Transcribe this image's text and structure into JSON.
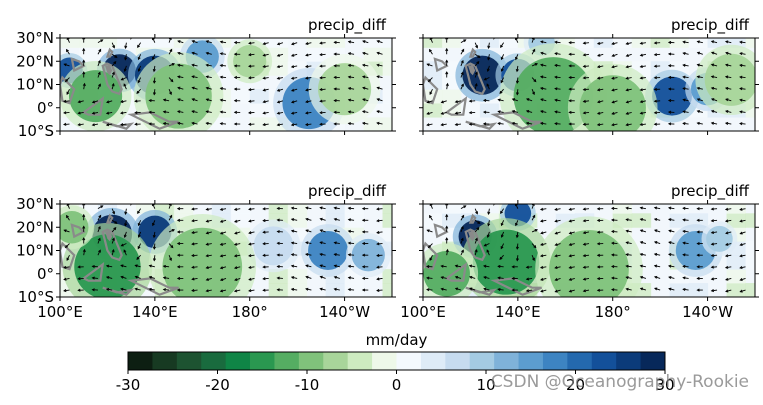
{
  "chart_data": {
    "type": "heatmap",
    "panels": [
      {
        "title": "precip_diff",
        "lat_ticks": [
          "30°N",
          "20°N",
          "10°N",
          "0°",
          "10°S"
        ],
        "lon_ticks": [],
        "blobs": [
          {
            "lon": 125,
            "lat": 16,
            "r": 5,
            "v": 28
          },
          {
            "lon": 140,
            "lat": 14,
            "r": 6,
            "v": 26
          },
          {
            "lon": 104,
            "lat": 16,
            "r": 4,
            "v": 22
          },
          {
            "lon": 160,
            "lat": 22,
            "r": 5,
            "v": 16
          },
          {
            "lon": 205,
            "lat": 2,
            "r": 8,
            "v": 18
          },
          {
            "lon": 180,
            "lat": 20,
            "r": 5,
            "v": -8
          },
          {
            "lon": 150,
            "lat": 5,
            "r": 10,
            "v": -10
          },
          {
            "lon": 115,
            "lat": 5,
            "r": 8,
            "v": -12
          },
          {
            "lon": 220,
            "lat": 8,
            "r": 8,
            "v": -6
          }
        ],
        "arrows": [
          {
            "lon": 160,
            "lat": 25,
            "u": -1,
            "v": 0
          },
          {
            "lon": 180,
            "lat": 10,
            "u": -1,
            "v": -0.2
          },
          {
            "lon": 210,
            "lat": 5,
            "u": -1,
            "v": 0.1
          }
        ]
      },
      {
        "title": "precip_diff",
        "lat_ticks": [],
        "lon_ticks": [],
        "blobs": [
          {
            "lon": 125,
            "lat": 14,
            "r": 6,
            "v": 28
          },
          {
            "lon": 140,
            "lat": 14,
            "r": 5,
            "v": 22
          },
          {
            "lon": 150,
            "lat": 28,
            "r": 4,
            "v": 10
          },
          {
            "lon": 205,
            "lat": 5,
            "r": 6,
            "v": 22
          },
          {
            "lon": 220,
            "lat": 8,
            "r": 5,
            "v": 14
          },
          {
            "lon": 155,
            "lat": 5,
            "r": 12,
            "v": -12
          },
          {
            "lon": 180,
            "lat": 0,
            "r": 10,
            "v": -10
          },
          {
            "lon": 230,
            "lat": 12,
            "r": 8,
            "v": -8
          }
        ],
        "arrows": []
      },
      {
        "title": "precip_diff",
        "lat_ticks": [
          "30°N",
          "20°N",
          "10°N",
          "0°",
          "10°S"
        ],
        "lon_ticks": [
          "100°E",
          "140°E",
          "180°",
          "140°W"
        ],
        "blobs": [
          {
            "lon": 122,
            "lat": 17,
            "r": 6,
            "v": 28
          },
          {
            "lon": 140,
            "lat": 18,
            "r": 5,
            "v": 26
          },
          {
            "lon": 213,
            "lat": 10,
            "r": 6,
            "v": 18
          },
          {
            "lon": 230,
            "lat": 8,
            "r": 5,
            "v": 12
          },
          {
            "lon": 190,
            "lat": 12,
            "r": 6,
            "v": 8
          },
          {
            "lon": 120,
            "lat": 3,
            "r": 10,
            "v": -14
          },
          {
            "lon": 160,
            "lat": 3,
            "r": 12,
            "v": -10
          },
          {
            "lon": 105,
            "lat": 20,
            "r": 5,
            "v": -10
          }
        ],
        "arrows": []
      },
      {
        "title": "precip_diff",
        "lat_ticks": [],
        "lon_ticks": [
          "100°E",
          "140°E",
          "180°",
          "140°W"
        ],
        "blobs": [
          {
            "lon": 122,
            "lat": 16,
            "r": 5,
            "v": 28
          },
          {
            "lon": 140,
            "lat": 26,
            "r": 4,
            "v": 22
          },
          {
            "lon": 215,
            "lat": 10,
            "r": 6,
            "v": 14
          },
          {
            "lon": 225,
            "lat": 15,
            "r": 4,
            "v": 10
          },
          {
            "lon": 135,
            "lat": 5,
            "r": 10,
            "v": -16
          },
          {
            "lon": 170,
            "lat": 2,
            "r": 12,
            "v": -10
          },
          {
            "lon": 110,
            "lat": 0,
            "r": 7,
            "v": -12
          }
        ],
        "arrows": []
      }
    ],
    "xlim": [
      100,
      240
    ],
    "ylim": [
      -10,
      30
    ],
    "colorbar": {
      "label": "mm/day",
      "ticks": [
        "-30",
        "-20",
        "-10",
        "0",
        "10",
        "20",
        "30"
      ],
      "range": [
        -30,
        30
      ],
      "colors": [
        "#0d1f12",
        "#173a22",
        "#1d5331",
        "#196b3e",
        "#0f8546",
        "#2a9850",
        "#55ad62",
        "#80c27b",
        "#a8d59a",
        "#cdebc0",
        "#eef8e9",
        "#f4f9fe",
        "#deebf7",
        "#c6dbef",
        "#a4cbe3",
        "#7fb2d9",
        "#5c9dcf",
        "#3d84c2",
        "#2469ae",
        "#13509a",
        "#0b3b7a",
        "#07285a"
      ]
    },
    "watermark": "CSDN @Oceanography-Rookie"
  }
}
